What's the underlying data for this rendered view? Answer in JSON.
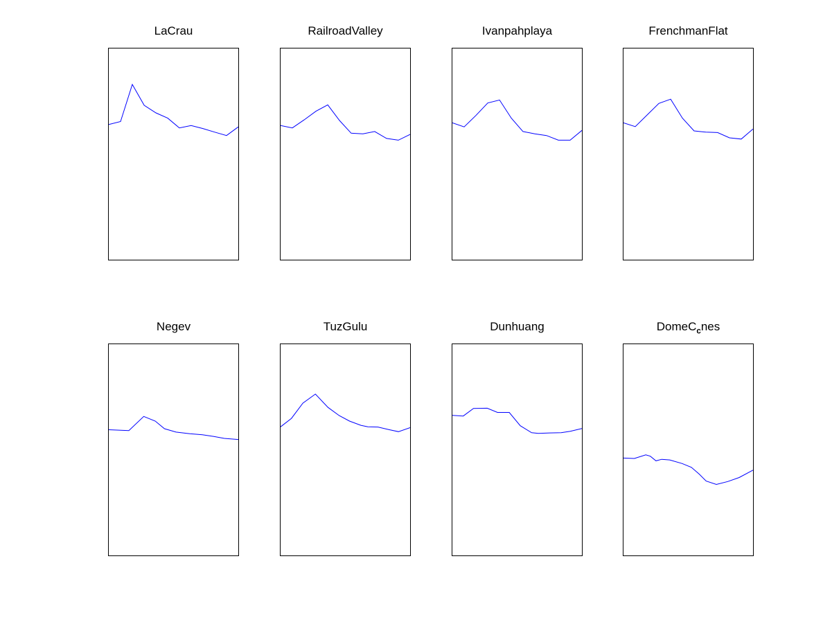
{
  "figure": {
    "background_color": "#ffffff",
    "axes_border_color": "#000000",
    "line_color": "#0000ff"
  },
  "panels": [
    {
      "title_pre": "LaCrau",
      "title_sub": "",
      "title_post": ""
    },
    {
      "title_pre": "RailroadValley",
      "title_sub": "",
      "title_post": ""
    },
    {
      "title_pre": "Ivanpahplaya",
      "title_sub": "",
      "title_post": ""
    },
    {
      "title_pre": "FrenchmanFlat",
      "title_sub": "",
      "title_post": ""
    },
    {
      "title_pre": "Negev",
      "title_sub": "",
      "title_post": ""
    },
    {
      "title_pre": "TuzGulu",
      "title_sub": "",
      "title_post": ""
    },
    {
      "title_pre": "Dunhuang",
      "title_sub": "",
      "title_post": ""
    },
    {
      "title_pre": "DomeC",
      "title_sub": "c",
      "title_post": "nes"
    }
  ],
  "chart_data": [
    {
      "type": "line",
      "title": "LaCrau",
      "xlabel": "",
      "ylabel": "",
      "grid": false,
      "legend": null,
      "axis_note": "no tick marks or tick labels visible; points are [x fraction 0-1 left-to-right, y fraction 0-1 bottom-to-top of axes box]",
      "points": [
        [
          0.0,
          0.64
        ],
        [
          0.091,
          0.654
        ],
        [
          0.182,
          0.83
        ],
        [
          0.273,
          0.731
        ],
        [
          0.364,
          0.695
        ],
        [
          0.455,
          0.67
        ],
        [
          0.545,
          0.624
        ],
        [
          0.636,
          0.635
        ],
        [
          0.727,
          0.621
        ],
        [
          0.818,
          0.604
        ],
        [
          0.909,
          0.588
        ],
        [
          1.0,
          0.629
        ]
      ]
    },
    {
      "type": "line",
      "title": "RailroadValley",
      "xlabel": "",
      "ylabel": "",
      "grid": false,
      "legend": null,
      "points": [
        [
          0.0,
          0.635
        ],
        [
          0.091,
          0.624
        ],
        [
          0.182,
          0.662
        ],
        [
          0.273,
          0.703
        ],
        [
          0.364,
          0.733
        ],
        [
          0.455,
          0.659
        ],
        [
          0.545,
          0.599
        ],
        [
          0.636,
          0.596
        ],
        [
          0.727,
          0.607
        ],
        [
          0.818,
          0.574
        ],
        [
          0.909,
          0.566
        ],
        [
          1.0,
          0.593
        ]
      ]
    },
    {
      "type": "line",
      "title": "Ivanpahplaya",
      "xlabel": "",
      "ylabel": "",
      "grid": false,
      "legend": null,
      "points": [
        [
          0.0,
          0.648
        ],
        [
          0.091,
          0.629
        ],
        [
          0.182,
          0.683
        ],
        [
          0.273,
          0.742
        ],
        [
          0.364,
          0.756
        ],
        [
          0.455,
          0.67
        ],
        [
          0.545,
          0.607
        ],
        [
          0.636,
          0.596
        ],
        [
          0.727,
          0.588
        ],
        [
          0.818,
          0.566
        ],
        [
          0.909,
          0.566
        ],
        [
          1.0,
          0.612
        ]
      ]
    },
    {
      "type": "line",
      "title": "FrenchmanFlat",
      "xlabel": "",
      "ylabel": "",
      "grid": false,
      "legend": null,
      "points": [
        [
          0.0,
          0.648
        ],
        [
          0.091,
          0.63
        ],
        [
          0.182,
          0.685
        ],
        [
          0.273,
          0.74
        ],
        [
          0.364,
          0.76
        ],
        [
          0.455,
          0.67
        ],
        [
          0.545,
          0.61
        ],
        [
          0.636,
          0.604
        ],
        [
          0.727,
          0.602
        ],
        [
          0.818,
          0.577
        ],
        [
          0.909,
          0.571
        ],
        [
          1.0,
          0.619
        ]
      ]
    },
    {
      "type": "line",
      "title": "Negev",
      "xlabel": "",
      "ylabel": "",
      "grid": false,
      "legend": null,
      "points": [
        [
          0.0,
          0.595
        ],
        [
          0.155,
          0.591
        ],
        [
          0.27,
          0.658
        ],
        [
          0.359,
          0.636
        ],
        [
          0.43,
          0.6
        ],
        [
          0.519,
          0.584
        ],
        [
          0.625,
          0.576
        ],
        [
          0.723,
          0.571
        ],
        [
          0.812,
          0.563
        ],
        [
          0.892,
          0.554
        ],
        [
          1.0,
          0.549
        ]
      ]
    },
    {
      "type": "line",
      "title": "TuzGulu",
      "xlabel": "",
      "ylabel": "",
      "grid": false,
      "legend": null,
      "points": [
        [
          0.0,
          0.609
        ],
        [
          0.084,
          0.649
        ],
        [
          0.172,
          0.721
        ],
        [
          0.269,
          0.764
        ],
        [
          0.366,
          0.701
        ],
        [
          0.453,
          0.662
        ],
        [
          0.532,
          0.636
        ],
        [
          0.62,
          0.616
        ],
        [
          0.673,
          0.609
        ],
        [
          0.752,
          0.608
        ],
        [
          0.84,
          0.595
        ],
        [
          0.91,
          0.586
        ],
        [
          1.0,
          0.605
        ]
      ]
    },
    {
      "type": "line",
      "title": "Dunhuang",
      "xlabel": "",
      "ylabel": "",
      "grid": false,
      "legend": null,
      "points": [
        [
          0.0,
          0.663
        ],
        [
          0.084,
          0.66
        ],
        [
          0.163,
          0.696
        ],
        [
          0.269,
          0.697
        ],
        [
          0.348,
          0.677
        ],
        [
          0.439,
          0.677
        ],
        [
          0.524,
          0.614
        ],
        [
          0.612,
          0.581
        ],
        [
          0.664,
          0.578
        ],
        [
          0.752,
          0.58
        ],
        [
          0.84,
          0.581
        ],
        [
          0.91,
          0.588
        ],
        [
          1.0,
          0.601
        ]
      ]
    },
    {
      "type": "line",
      "title": "DomeC_cnes",
      "xlabel": "",
      "ylabel": "",
      "grid": false,
      "legend": null,
      "points": [
        [
          0.0,
          0.461
        ],
        [
          0.084,
          0.459
        ],
        [
          0.172,
          0.476
        ],
        [
          0.207,
          0.47
        ],
        [
          0.251,
          0.448
        ],
        [
          0.295,
          0.455
        ],
        [
          0.357,
          0.452
        ],
        [
          0.453,
          0.435
        ],
        [
          0.524,
          0.417
        ],
        [
          0.585,
          0.385
        ],
        [
          0.638,
          0.352
        ],
        [
          0.717,
          0.336
        ],
        [
          0.805,
          0.35
        ],
        [
          0.893,
          0.369
        ],
        [
          1.0,
          0.404
        ]
      ]
    }
  ]
}
